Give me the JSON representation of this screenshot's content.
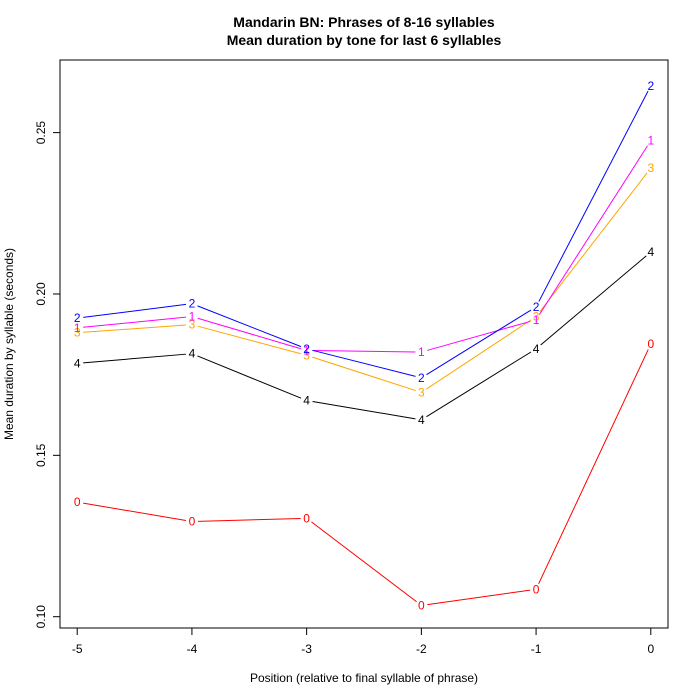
{
  "chart_data": {
    "type": "line",
    "title": "Mandarin BN: Phrases of 8-16 syllables",
    "subtitle": "Mean duration by tone for last 6 syllables",
    "xlabel": "Position (relative to final syllable of phrase)",
    "ylabel": "Mean duration by syllable (seconds)",
    "x": [
      -5,
      -4,
      -3,
      -2,
      -1,
      0
    ],
    "xticks": [
      "-5",
      "-4",
      "-3",
      "-2",
      "-1",
      "0"
    ],
    "yticks": [
      "0.10",
      "0.15",
      "0.20",
      "0.25"
    ],
    "ytick_values": [
      0.1,
      0.15,
      0.2,
      0.25
    ],
    "xlim": [
      -5.15,
      0.15
    ],
    "ylim": [
      0.0965,
      0.2725
    ],
    "grid": false,
    "legend": "none",
    "series": [
      {
        "marker": "0",
        "color": "#ff0000",
        "values": [
          0.1355,
          0.1295,
          0.1305,
          0.1035,
          0.1085,
          0.1845
        ]
      },
      {
        "marker": "4",
        "color": "#000000",
        "values": [
          0.1785,
          0.1815,
          0.167,
          0.161,
          0.183,
          0.213
        ]
      },
      {
        "marker": "3",
        "color": "#ffa500",
        "values": [
          0.188,
          0.1905,
          0.181,
          0.1695,
          0.193,
          0.239
        ]
      },
      {
        "marker": "1",
        "color": "#ff00ff",
        "values": [
          0.1895,
          0.193,
          0.1825,
          0.182,
          0.192,
          0.2475
        ]
      },
      {
        "marker": "2",
        "color": "#0000ff",
        "values": [
          0.1925,
          0.197,
          0.183,
          0.174,
          0.196,
          0.2645
        ]
      }
    ]
  }
}
